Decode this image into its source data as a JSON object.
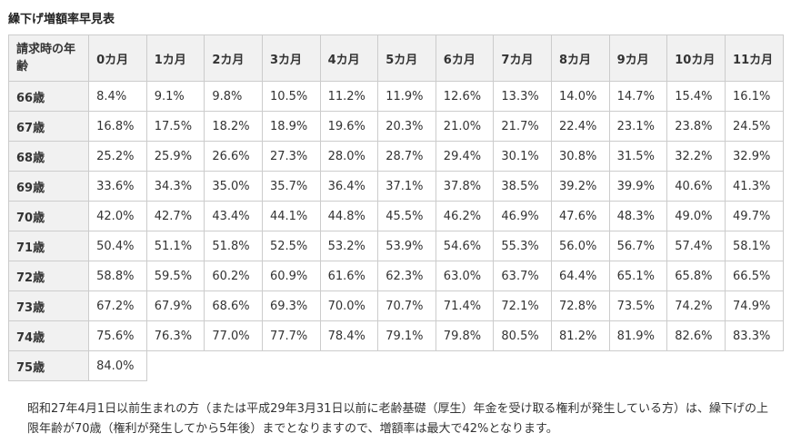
{
  "title": "繰下げ増額率早見表",
  "table": {
    "corner_header": "請求時の年齢",
    "month_headers": [
      "0カ月",
      "1カ月",
      "2カ月",
      "3カ月",
      "4カ月",
      "5カ月",
      "6カ月",
      "7カ月",
      "8カ月",
      "9カ月",
      "10カ月",
      "11カ月"
    ],
    "rows": [
      {
        "age": "66歳",
        "values": [
          "8.4%",
          "9.1%",
          "9.8%",
          "10.5%",
          "11.2%",
          "11.9%",
          "12.6%",
          "13.3%",
          "14.0%",
          "14.7%",
          "15.4%",
          "16.1%"
        ]
      },
      {
        "age": "67歳",
        "values": [
          "16.8%",
          "17.5%",
          "18.2%",
          "18.9%",
          "19.6%",
          "20.3%",
          "21.0%",
          "21.7%",
          "22.4%",
          "23.1%",
          "23.8%",
          "24.5%"
        ]
      },
      {
        "age": "68歳",
        "values": [
          "25.2%",
          "25.9%",
          "26.6%",
          "27.3%",
          "28.0%",
          "28.7%",
          "29.4%",
          "30.1%",
          "30.8%",
          "31.5%",
          "32.2%",
          "32.9%"
        ]
      },
      {
        "age": "69歳",
        "values": [
          "33.6%",
          "34.3%",
          "35.0%",
          "35.7%",
          "36.4%",
          "37.1%",
          "37.8%",
          "38.5%",
          "39.2%",
          "39.9%",
          "40.6%",
          "41.3%"
        ]
      },
      {
        "age": "70歳",
        "values": [
          "42.0%",
          "42.7%",
          "43.4%",
          "44.1%",
          "44.8%",
          "45.5%",
          "46.2%",
          "46.9%",
          "47.6%",
          "48.3%",
          "49.0%",
          "49.7%"
        ]
      },
      {
        "age": "71歳",
        "values": [
          "50.4%",
          "51.1%",
          "51.8%",
          "52.5%",
          "53.2%",
          "53.9%",
          "54.6%",
          "55.3%",
          "56.0%",
          "56.7%",
          "57.4%",
          "58.1%"
        ]
      },
      {
        "age": "72歳",
        "values": [
          "58.8%",
          "59.5%",
          "60.2%",
          "60.9%",
          "61.6%",
          "62.3%",
          "63.0%",
          "63.7%",
          "64.4%",
          "65.1%",
          "65.8%",
          "66.5%"
        ]
      },
      {
        "age": "73歳",
        "values": [
          "67.2%",
          "67.9%",
          "68.6%",
          "69.3%",
          "70.0%",
          "70.7%",
          "71.4%",
          "72.1%",
          "72.8%",
          "73.5%",
          "74.2%",
          "74.9%"
        ]
      },
      {
        "age": "74歳",
        "values": [
          "75.6%",
          "76.3%",
          "77.0%",
          "77.7%",
          "78.4%",
          "79.1%",
          "79.8%",
          "80.5%",
          "81.2%",
          "81.9%",
          "82.6%",
          "83.3%"
        ]
      },
      {
        "age": "75歳",
        "values": [
          "84.0%"
        ]
      }
    ]
  },
  "footer": "昭和27年4月1日以前生まれの方（または平成29年3月31日以前に老齢基礎（厚生）年金を受け取る権利が発生している方）は、繰下げの上限年齢が70歳（権利が発生してから5年後）までとなりますので、増額率は最大で42%となります。",
  "colors": {
    "header_bg": "#f1f1f1",
    "border": "#cccccc",
    "text": "#333333"
  }
}
